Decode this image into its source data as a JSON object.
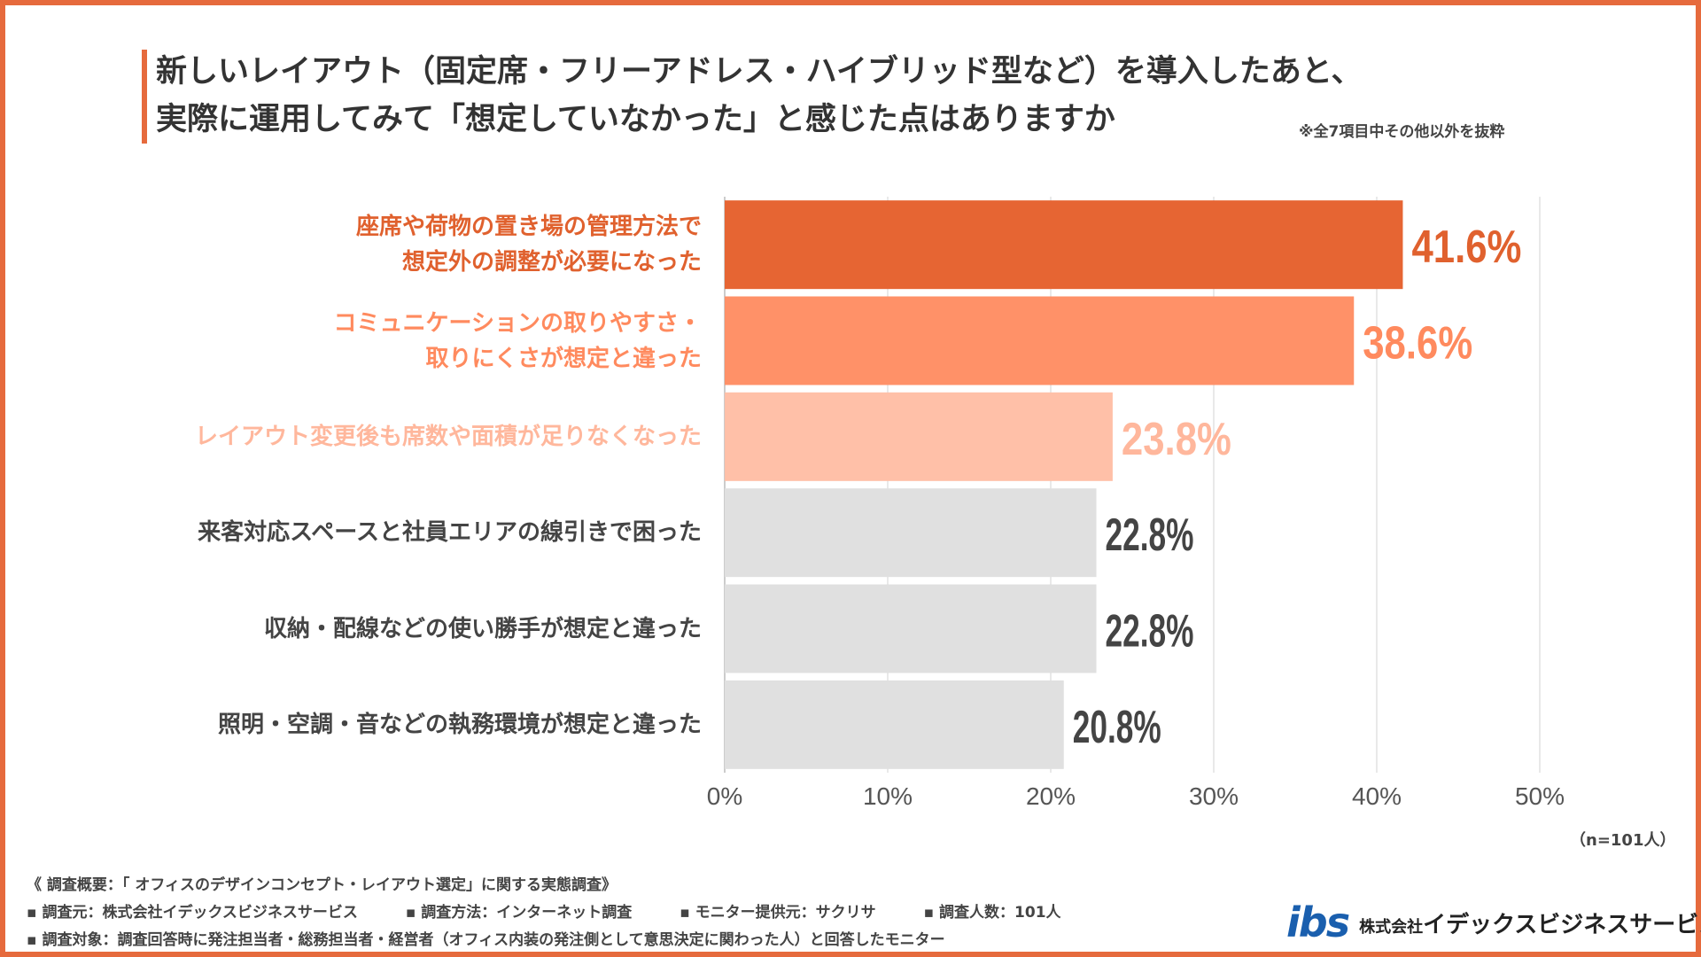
{
  "title": {
    "line1": "新しいレイアウト（固定席・フリーアドレス・ハイブリッド型など）を導入したあと、",
    "line2": "実際に運用してみて「想定していなかった」と感じた点はありますか",
    "note": "※全7項目中その他以外を抜粋"
  },
  "chart_data": {
    "type": "bar",
    "orientation": "horizontal",
    "categories": [
      "座席や荷物の置き場の管理方法で\n想定外の調整が必要になった",
      "コミュニケーションの取りやすさ・\n取りにくさが想定と違った",
      "レイアウト変更後も席数や面積が足りなくなった",
      "来客対応スペースと社員エリアの線引きで困った",
      "収納・配線などの使い勝手が想定と違った",
      "照明・空調・音などの執務環境が想定と違った"
    ],
    "values": [
      41.6,
      38.6,
      23.8,
      22.8,
      22.8,
      20.8
    ],
    "value_labels": [
      "41.6%",
      "38.6%",
      "23.8%",
      "22.8%",
      "22.8%",
      "20.8%"
    ],
    "bar_colors": [
      "#e66533",
      "#ff9168",
      "#ffc0a8",
      "#e0e0e0",
      "#e0e0e0",
      "#e0e0e0"
    ],
    "label_colors": [
      "#e0612e",
      "#ff8a5e",
      "#ffb79c",
      "#444444",
      "#444444",
      "#444444"
    ],
    "xlim": [
      0,
      50
    ],
    "ticks": [
      "0%",
      "10%",
      "20%",
      "30%",
      "40%",
      "50%"
    ],
    "grid": true
  },
  "n_label": "（n=101人）",
  "footer": {
    "line1": "《 調査概要：「 オフィスのデザインコンセプト・レイアウト選定」に関する実態調査》",
    "source": "▪ 調査元：株式会社イデックスビジネスサービス",
    "method": "▪ 調査方法：インターネット調査",
    "monitor": "▪ モニター提供元：サクリサ",
    "count": "▪ 調査人数：101人",
    "target": "▪ 調査対象：調査回答時に発注担当者・総務担当者・経営者（オフィス内装の発注側として意思決定に関わった人）と回答したモニター"
  },
  "logo": {
    "mark": "ibs",
    "prefix": "株式会社",
    "name": "イデックスビジネスサービス"
  }
}
